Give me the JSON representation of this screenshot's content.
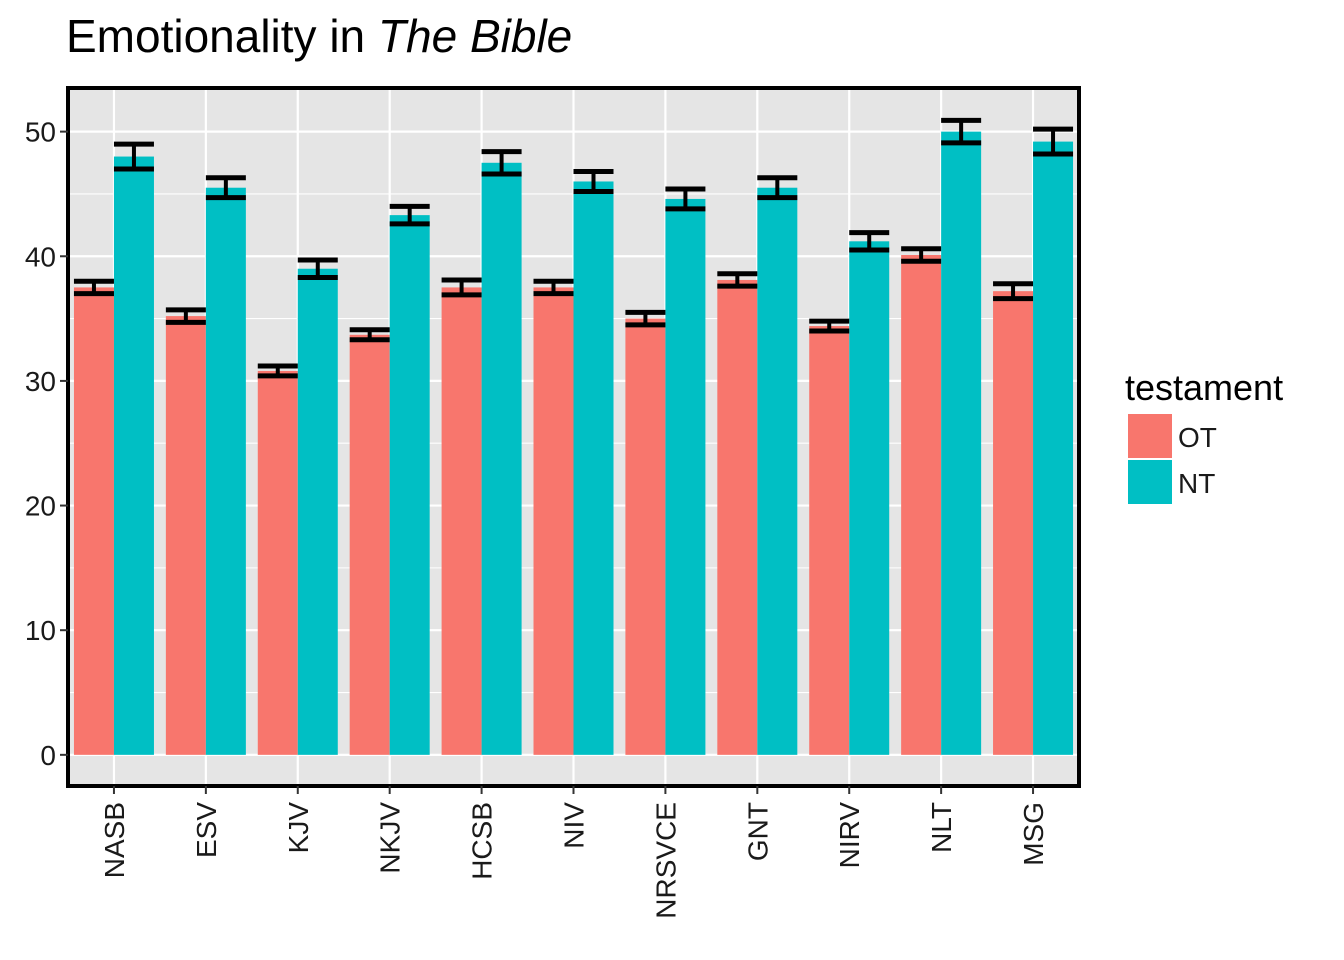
{
  "chart_data": {
    "type": "bar",
    "title_prefix": "Emotionality in ",
    "title_italic": "The Bible",
    "xlabel": "",
    "ylabel": "",
    "ylim": [
      -2.5,
      53.5
    ],
    "yticks": [
      0,
      10,
      20,
      30,
      40,
      50
    ],
    "grid": true,
    "categories": [
      "NASB",
      "ESV",
      "KJV",
      "NKJV",
      "HCSB",
      "NIV",
      "NRSVCE",
      "GNT",
      "NIRV",
      "NLT",
      "MSG"
    ],
    "series": [
      {
        "name": "OT",
        "color": "#F8766D",
        "values": [
          37.5,
          35.2,
          30.8,
          33.7,
          37.5,
          37.5,
          35.0,
          38.1,
          34.4,
          40.1,
          37.2
        ],
        "error": [
          0.5,
          0.5,
          0.4,
          0.4,
          0.6,
          0.5,
          0.5,
          0.5,
          0.4,
          0.5,
          0.6
        ]
      },
      {
        "name": "NT",
        "color": "#00BFC4",
        "values": [
          48.0,
          45.5,
          39.0,
          43.3,
          47.5,
          46.0,
          44.6,
          45.5,
          41.2,
          50.0,
          49.2
        ],
        "error": [
          1.0,
          0.8,
          0.7,
          0.7,
          0.9,
          0.8,
          0.8,
          0.8,
          0.7,
          0.9,
          1.0
        ]
      }
    ],
    "legend": {
      "title": "testament",
      "position": "right"
    },
    "colors": {
      "panel": "#E5E5E5",
      "grid": "#FFFFFF",
      "border": "#000000",
      "errorbar": "#000000"
    }
  }
}
